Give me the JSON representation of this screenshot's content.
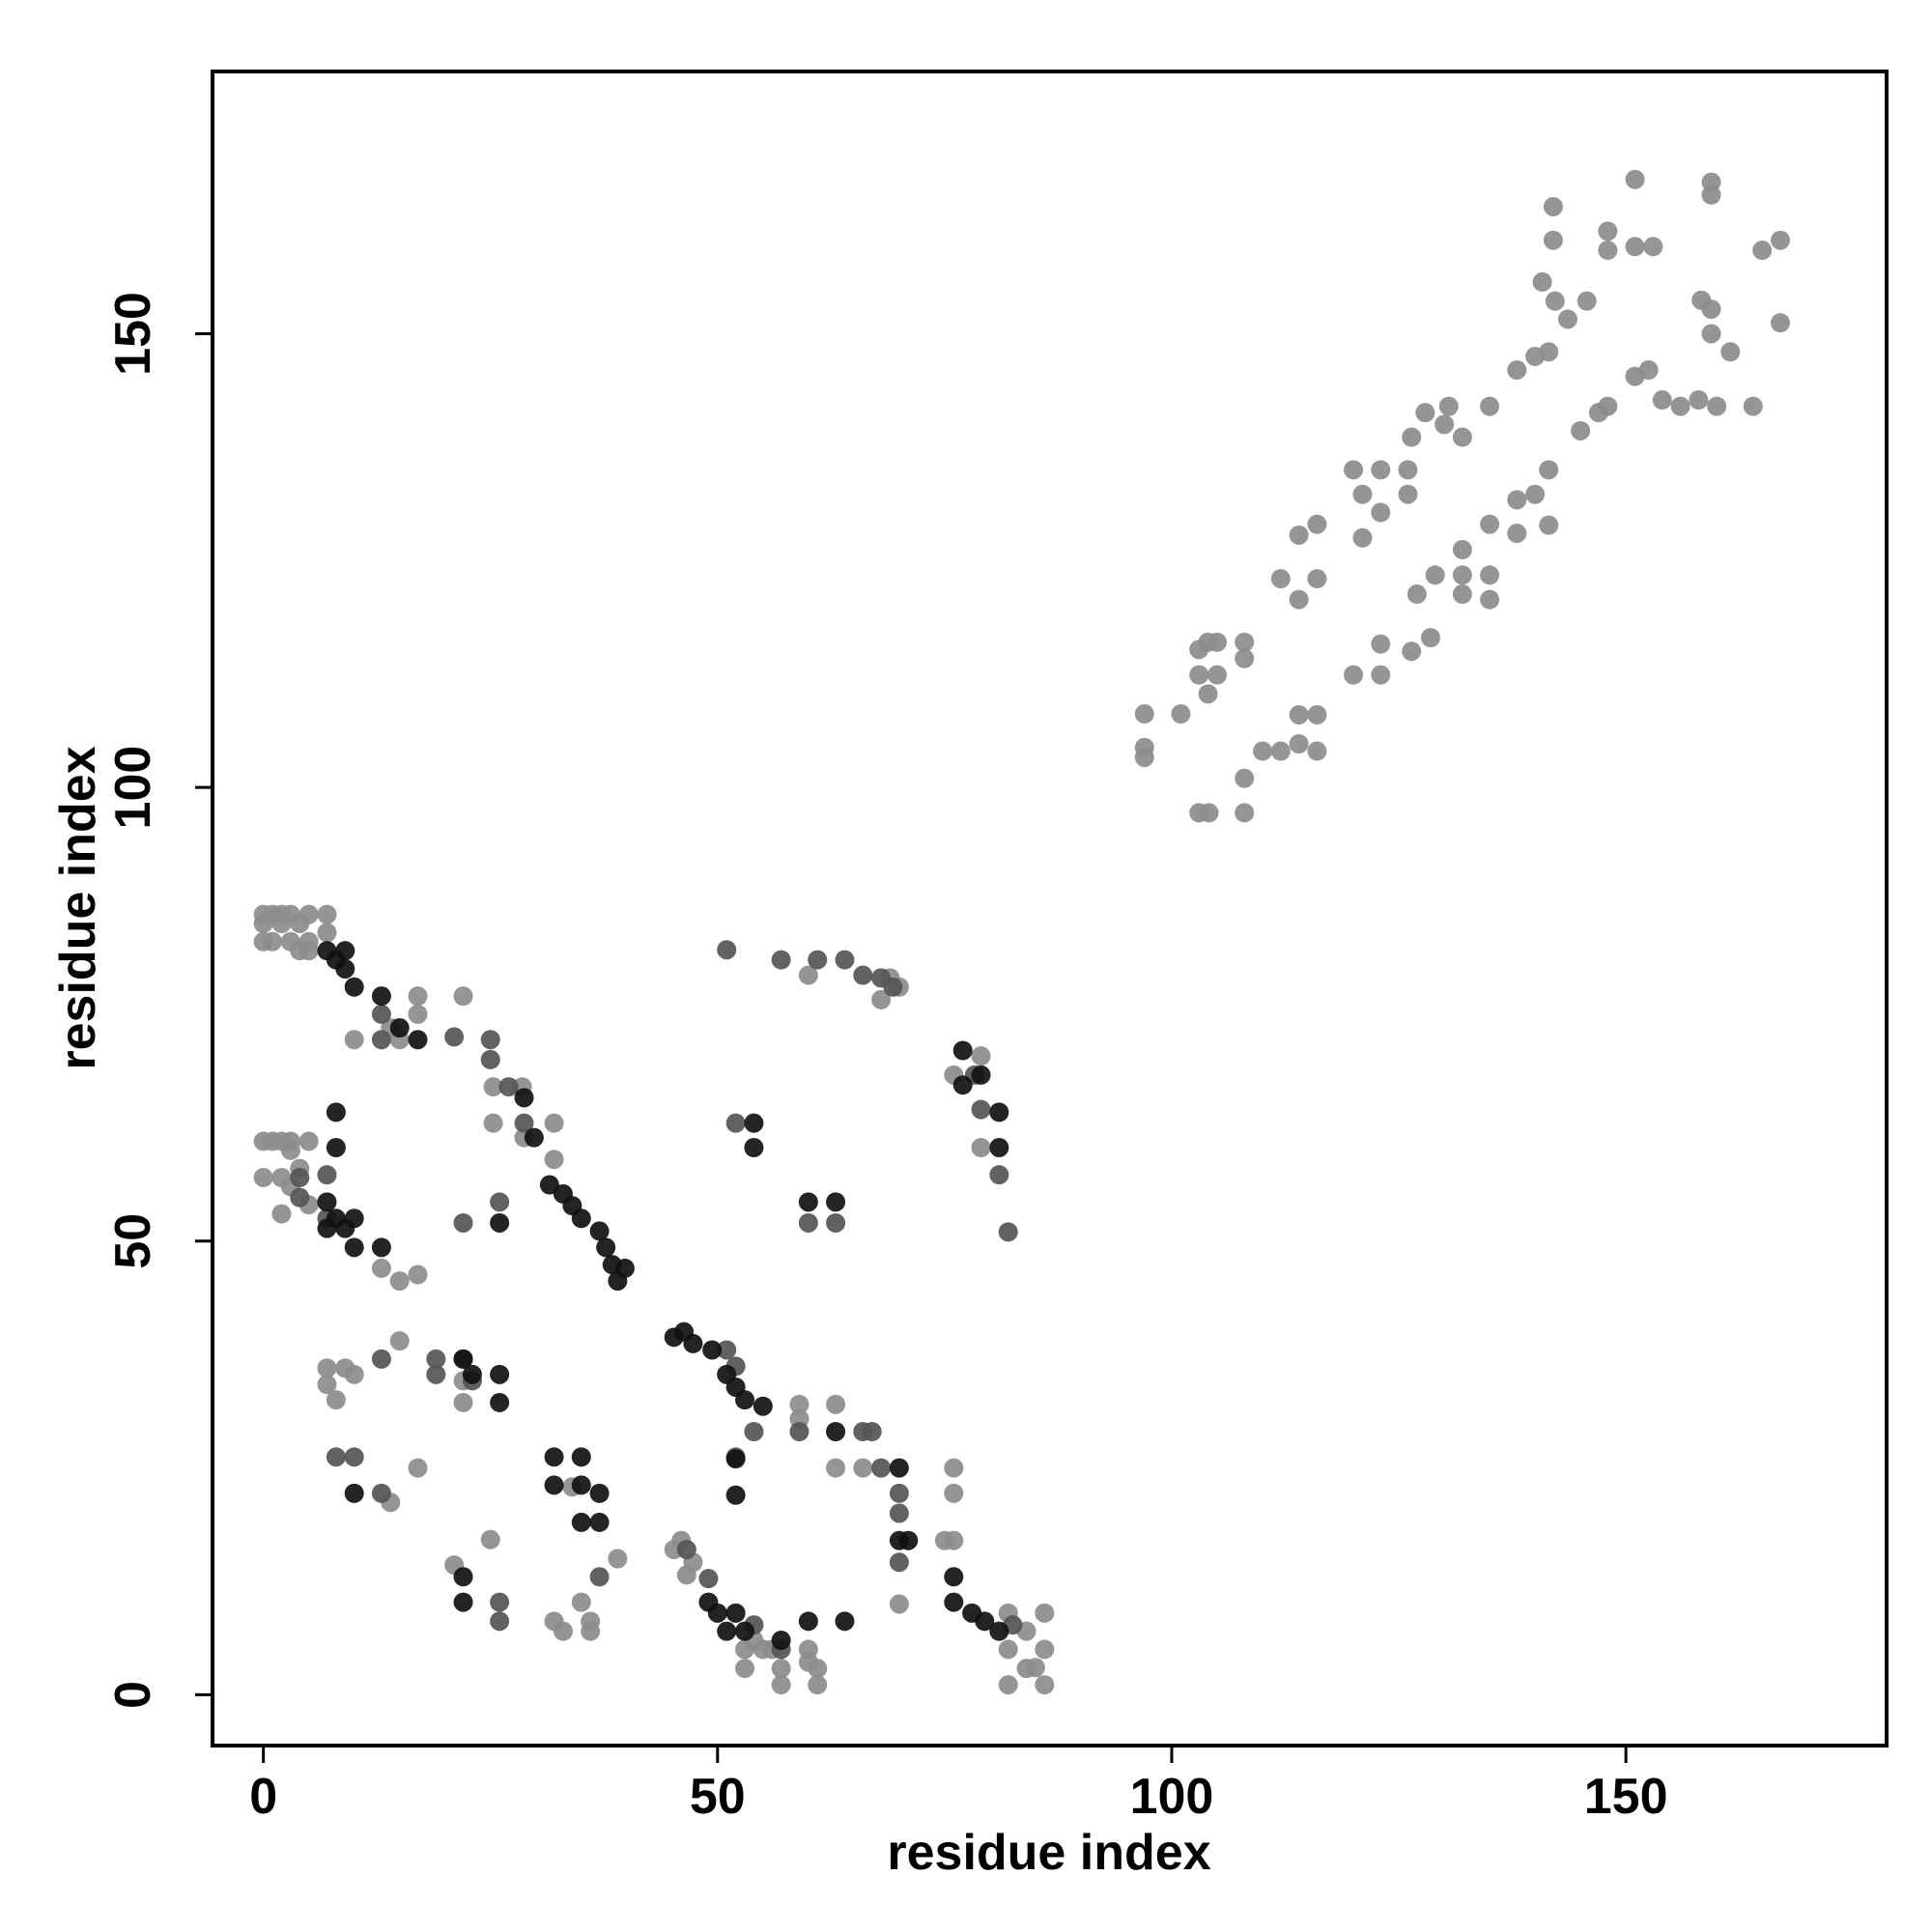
{
  "chart_data": {
    "type": "scatter",
    "x_label": "residue index",
    "y_label": "residue index",
    "xlim": [
      -5.6,
      178.7
    ],
    "ylim": [
      -5.6,
      178.9
    ],
    "xticks": [
      0,
      50,
      100,
      150
    ],
    "yticks": [
      0,
      50,
      100,
      150
    ],
    "series": [
      {
        "color": "#8c8c8c",
        "x": [
          97,
          97,
          97,
          101,
          103,
          104.1,
          103,
          104,
          105,
          103,
          104,
          105,
          108,
          108,
          108,
          108,
          110,
          112,
          114,
          114,
          116,
          116,
          112,
          114,
          116,
          114,
          116,
          120,
          123,
          121,
          123,
          121,
          120,
          123,
          123,
          126,
          126,
          126.4,
          128.5,
          127,
          129,
          132,
          132,
          135,
          135,
          135,
          132,
          126.4,
          127.9,
          130,
          132,
          130.5,
          135,
          138,
          138,
          140,
          141.5,
          141.5,
          138,
          140,
          141.5,
          140.8,
          142.2,
          143.6,
          145.7,
          142,
          142,
          148,
          148,
          151,
          153,
          151,
          159.4,
          159.4,
          145,
          147,
          148,
          151,
          152.5,
          154,
          156,
          159.4,
          159.4,
          161.5,
          160,
          164,
          165,
          167,
          167,
          158,
          158.3,
          0,
          1,
          2,
          3,
          5,
          7,
          0,
          2,
          4,
          0,
          1,
          3,
          5,
          4,
          7,
          5,
          0,
          1,
          2,
          3,
          5,
          0,
          2,
          3,
          2,
          5,
          3,
          4,
          10,
          17,
          22,
          17,
          14,
          15,
          28.5,
          25.3,
          25.3,
          32,
          32,
          28.7,
          7,
          7,
          8,
          9,
          10,
          15,
          17,
          14,
          22,
          22,
          21,
          25,
          32,
          33,
          35,
          36,
          34,
          36,
          39,
          46,
          45.2,
          46.6,
          47.3,
          53,
          54,
          55,
          56,
          57,
          57,
          60,
          61,
          61,
          60,
          53,
          59,
          63,
          59,
          63,
          66,
          76,
          76,
          75,
          76,
          70,
          82,
          82,
          82,
          84,
          84,
          86,
          86,
          86,
          85,
          60,
          69,
          68,
          70,
          79,
          79,
          76,
          13,
          15,
          17
        ],
        "y": [
          108.1,
          104.4,
          103.3,
          108.1,
          97.2,
          97.2,
          115.2,
          116,
          116,
          112.4,
          110.3,
          112.4,
          116,
          114.2,
          101,
          97.2,
          104,
          104,
          104.8,
          108,
          108,
          104,
          123,
          120.7,
          123,
          127.8,
          129,
          135,
          135,
          132.3,
          130.3,
          127.5,
          112.4,
          115.8,
          112.4,
          135,
          132.3,
          115,
          116.5,
          121.3,
          123.4,
          123.4,
          121.3,
          120.7,
          123.4,
          129,
          126.2,
          138.6,
          141.3,
          140,
          138.6,
          142,
          142,
          128,
          131.7,
          132.3,
          128.9,
          135,
          146,
          147.5,
          148,
          155.7,
          153.6,
          151.6,
          153.6,
          164,
          160.3,
          161.3,
          159.2,
          159.6,
          159.6,
          167,
          166.7,
          165.3,
          139.3,
          141.3,
          142,
          145.3,
          146,
          142.7,
          142,
          152.7,
          150,
          148,
          142,
          142,
          159.2,
          160.3,
          151.2,
          142.7,
          153.7,
          86,
          86,
          86,
          86,
          86,
          86,
          85,
          85,
          85,
          83,
          83,
          83,
          83,
          82,
          84,
          82,
          61,
          61,
          61,
          61,
          61,
          57,
          57,
          56,
          53,
          54,
          60,
          58,
          72.2,
          77,
          77,
          75,
          73.5,
          72.2,
          67,
          67,
          63,
          63,
          59,
          61.4,
          36,
          34.2,
          32.5,
          36,
          35.3,
          39,
          25,
          21.2,
          34.6,
          32.2,
          14.3,
          17.1,
          8.1,
          7,
          10.2,
          8.1,
          22.9,
          7,
          15,
          17,
          16,
          13.2,
          14.6,
          5,
          6,
          5,
          5,
          2.9,
          1.1,
          5,
          2.9,
          1.1,
          3.6,
          2.9,
          32,
          32,
          30.4,
          25,
          25,
          25,
          22.2,
          17,
          17,
          10,
          9,
          5,
          1.1,
          2.9,
          7,
          9,
          5,
          1.1,
          3,
          79.3,
          79,
          76.6,
          78,
          70.4,
          60.3,
          68.3,
          47,
          45.6,
          46.3
        ]
      },
      {
        "color": "#555555",
        "x": [
          51,
          57,
          61,
          64,
          66,
          68,
          69.3,
          13,
          13,
          21,
          25,
          25,
          27,
          28.7,
          4,
          7,
          4,
          7,
          22,
          26,
          52,
          60,
          63,
          78.3,
          81,
          82,
          79,
          13,
          19,
          19,
          22,
          23,
          8,
          10,
          13,
          37,
          26,
          26,
          51,
          52,
          54,
          52,
          59,
          66,
          67,
          70,
          70,
          70,
          68,
          49,
          46.6,
          54,
          57,
          82.5
        ],
        "y": [
          82.1,
          81,
          81,
          81,
          79.3,
          79,
          78,
          75,
          72.2,
          72.5,
          72.2,
          70,
          67,
          63,
          57,
          57.3,
          54.8,
          52.5,
          52,
          54.3,
          63,
          52,
          52,
          68.3,
          57.3,
          51,
          64.5,
          37,
          37,
          35.3,
          37,
          34.6,
          26.2,
          26.2,
          22.2,
          13,
          10.2,
          8.1,
          38,
          36.2,
          29,
          26.2,
          29,
          29,
          29,
          22.2,
          20,
          14.6,
          25,
          12.8,
          16,
          7.7,
          5,
          7.7
        ]
      },
      {
        "color": "#111111",
        "x": [
          7,
          8,
          9,
          9,
          10,
          13,
          8,
          8,
          7,
          7,
          9,
          10,
          10,
          13,
          8,
          15,
          17,
          28.7,
          29.8,
          31.5,
          33,
          34,
          35,
          37,
          37.7,
          38.4,
          39.8,
          39,
          26,
          54,
          54,
          60,
          63,
          77,
          79,
          81,
          81,
          77,
          45.2,
          46.3,
          47.3,
          49.4,
          51,
          52,
          53,
          55,
          63,
          70,
          22,
          23,
          26,
          26,
          10,
          32,
          35,
          32,
          35,
          37,
          35,
          37,
          22,
          22,
          49,
          50,
          52,
          51,
          53,
          60,
          64,
          52,
          52,
          70,
          71,
          76,
          76,
          78,
          79.4,
          81,
          57
        ],
        "y": [
          82,
          81,
          82,
          80,
          78,
          77,
          64.2,
          60.3,
          54.3,
          51.4,
          51.4,
          52.5,
          49.3,
          49.3,
          52.5,
          73.5,
          72.2,
          65.8,
          61.4,
          56.2,
          55.2,
          53.9,
          52.5,
          51.1,
          49.3,
          47.4,
          47,
          45.6,
          52,
          63,
          60.3,
          54.3,
          54.3,
          71,
          68.3,
          64.2,
          60.3,
          67.2,
          39.4,
          40,
          38.7,
          38,
          35.3,
          33.9,
          32.5,
          31.8,
          29,
          25,
          37,
          35.3,
          35.3,
          32.2,
          22.2,
          26.2,
          26.2,
          23.1,
          23.1,
          22.2,
          19,
          19,
          10.2,
          13,
          10.2,
          9,
          9,
          7,
          7,
          8.1,
          8.1,
          26,
          22,
          17,
          17,
          13,
          10.2,
          9,
          8.1,
          7,
          6
        ]
      }
    ]
  }
}
